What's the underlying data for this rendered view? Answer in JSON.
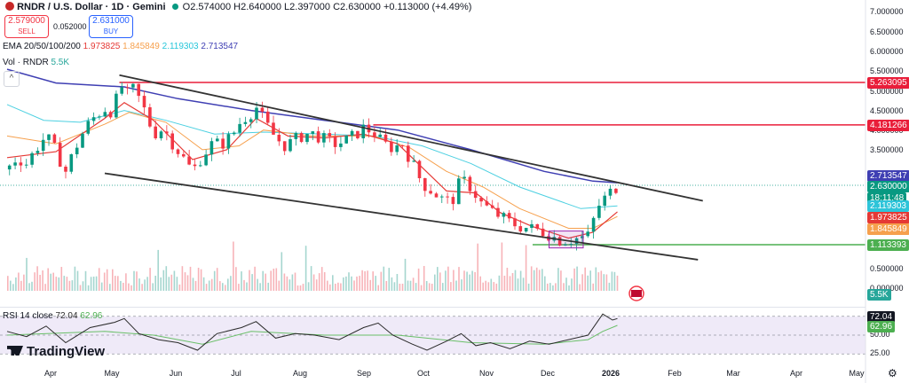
{
  "header": {
    "symbol": "RNDR / U.S. Dollar · 1D · Gemini",
    "ohlc": "O2.574000  H2.640000  L2.397000  C2.630000  +0.113000 (+4.49%)"
  },
  "trade": {
    "sell_price": "2.579000",
    "sell_label": "SELL",
    "spread": "0.052000",
    "buy_price": "2.631000",
    "buy_label": "BUY"
  },
  "indicators": {
    "ema_label": "EMA 20/50/100/200",
    "ema_values": [
      "1.973825",
      "1.845849",
      "2.119303",
      "2.713547"
    ],
    "vol_label": "Vol · RNDR",
    "vol_value": "5.5K",
    "rsi_label": "RSI 14 close",
    "rsi_value": "72.04",
    "rsi_ma": "62.96"
  },
  "logo": {
    "text": "TradingView"
  },
  "colors": {
    "ema20": "#e53935",
    "ema50": "#f6a04d",
    "ema100": "#4dd0e1",
    "ema200": "#3f3fb3",
    "up": "#089981",
    "down": "#f23645",
    "resistance": "#e91e3a",
    "support": "#4caf50",
    "trend": "#333333",
    "rsi": "#2a2a2a",
    "rsi_ma": "#6abf69"
  },
  "chart_data": {
    "type": "candlestick",
    "x_ticks": [
      "Apr",
      "May",
      "Jun",
      "Jul",
      "Aug",
      "Sep",
      "Oct",
      "Nov",
      "Dec",
      "2026",
      "Feb",
      "Mar",
      "Apr",
      "May"
    ],
    "price_ticks": [
      "7.000000",
      "6.500000",
      "6.000000",
      "5.500000",
      "5.000000",
      "4.500000",
      "4.000000",
      "3.500000",
      "1.000000",
      "0.500000",
      "0.000000"
    ],
    "rsi_ticks": [
      "75.00",
      "50.00",
      "25.00"
    ],
    "price_tags": [
      {
        "value": "5.263095",
        "kind": "resistance"
      },
      {
        "value": "4.181266",
        "kind": "resistance"
      },
      {
        "value": "2.713547",
        "kind": "ema200"
      },
      {
        "value": "2.630000",
        "kind": "last",
        "sub": "18:11:48"
      },
      {
        "value": "2.119303",
        "kind": "ema100"
      },
      {
        "value": "1.973825",
        "kind": "ema20"
      },
      {
        "value": "1.845849",
        "kind": "ema50"
      },
      {
        "value": "1.113393",
        "kind": "support"
      }
    ],
    "horizontal_levels": [
      5.263095,
      4.181266,
      1.113393
    ],
    "close_series": [
      [
        0,
        3.05
      ],
      [
        4,
        3.35
      ],
      [
        8,
        3.2
      ],
      [
        12,
        3.6
      ],
      [
        16,
        3.9
      ],
      [
        20,
        3.5
      ],
      [
        24,
        3.0
      ],
      [
        28,
        3.6
      ],
      [
        32,
        4.1
      ],
      [
        36,
        4.4
      ],
      [
        40,
        4.6
      ],
      [
        44,
        4.5
      ],
      [
        46,
        5.4
      ],
      [
        48,
        4.9
      ],
      [
        52,
        5.1
      ],
      [
        56,
        4.6
      ],
      [
        60,
        3.95
      ],
      [
        64,
        4.1
      ],
      [
        68,
        3.7
      ],
      [
        72,
        3.35
      ],
      [
        76,
        3.0
      ],
      [
        80,
        3.4
      ],
      [
        84,
        3.7
      ],
      [
        88,
        3.7
      ],
      [
        92,
        3.9
      ],
      [
        96,
        4.3
      ],
      [
        100,
        4.5
      ],
      [
        102,
        4.65
      ],
      [
        106,
        4.2
      ],
      [
        110,
        3.85
      ],
      [
        114,
        3.65
      ],
      [
        118,
        3.8
      ],
      [
        122,
        3.95
      ],
      [
        126,
        3.95
      ],
      [
        130,
        3.8
      ],
      [
        134,
        3.7
      ],
      [
        138,
        3.75
      ],
      [
        142,
        3.9
      ],
      [
        146,
        4.1
      ],
      [
        150,
        4.0
      ],
      [
        154,
        3.7
      ],
      [
        158,
        3.6
      ],
      [
        162,
        3.7
      ],
      [
        166,
        3.2
      ],
      [
        170,
        2.7
      ],
      [
        174,
        2.5
      ],
      [
        178,
        2.3
      ],
      [
        182,
        2.2
      ],
      [
        186,
        2.8
      ],
      [
        190,
        2.6
      ],
      [
        194,
        2.2
      ],
      [
        198,
        2.0
      ],
      [
        202,
        1.85
      ],
      [
        206,
        1.7
      ],
      [
        210,
        1.6
      ],
      [
        214,
        1.55
      ],
      [
        218,
        1.5
      ],
      [
        222,
        1.4
      ],
      [
        226,
        1.25
      ],
      [
        230,
        1.25
      ],
      [
        234,
        1.3
      ],
      [
        238,
        1.35
      ],
      [
        242,
        2.1
      ],
      [
        246,
        2.4
      ],
      [
        250,
        2.63
      ]
    ],
    "ema20": [
      [
        0,
        3.35
      ],
      [
        20,
        3.5
      ],
      [
        40,
        4.35
      ],
      [
        48,
        4.75
      ],
      [
        60,
        4.3
      ],
      [
        76,
        3.3
      ],
      [
        90,
        3.55
      ],
      [
        102,
        4.35
      ],
      [
        115,
        3.9
      ],
      [
        130,
        3.85
      ],
      [
        146,
        3.95
      ],
      [
        160,
        3.7
      ],
      [
        170,
        3.1
      ],
      [
        180,
        2.5
      ],
      [
        192,
        2.45
      ],
      [
        202,
        1.95
      ],
      [
        215,
        1.6
      ],
      [
        230,
        1.3
      ],
      [
        240,
        1.45
      ],
      [
        250,
        1.97
      ]
    ],
    "ema50": [
      [
        0,
        3.9
      ],
      [
        20,
        3.7
      ],
      [
        40,
        4.2
      ],
      [
        50,
        4.5
      ],
      [
        65,
        4.25
      ],
      [
        80,
        3.55
      ],
      [
        95,
        3.65
      ],
      [
        105,
        4.05
      ],
      [
        125,
        3.9
      ],
      [
        150,
        3.9
      ],
      [
        165,
        3.6
      ],
      [
        180,
        3.0
      ],
      [
        195,
        2.6
      ],
      [
        210,
        2.05
      ],
      [
        230,
        1.55
      ],
      [
        240,
        1.55
      ],
      [
        250,
        1.85
      ]
    ],
    "ema100": [
      [
        0,
        4.7
      ],
      [
        15,
        4.3
      ],
      [
        30,
        4.25
      ],
      [
        48,
        4.55
      ],
      [
        65,
        4.3
      ],
      [
        85,
        3.95
      ],
      [
        105,
        4.0
      ],
      [
        130,
        3.95
      ],
      [
        150,
        3.9
      ],
      [
        170,
        3.65
      ],
      [
        190,
        3.2
      ],
      [
        210,
        2.6
      ],
      [
        235,
        2.05
      ],
      [
        250,
        2.12
      ]
    ],
    "ema200": [
      [
        0,
        5.6
      ],
      [
        20,
        5.25
      ],
      [
        48,
        5.15
      ],
      [
        70,
        4.85
      ],
      [
        100,
        4.55
      ],
      [
        130,
        4.3
      ],
      [
        160,
        4.05
      ],
      [
        190,
        3.55
      ],
      [
        220,
        3.0
      ],
      [
        240,
        2.75
      ],
      [
        250,
        2.71
      ]
    ],
    "trendlines": [
      {
        "from": [
          46,
          5.45
        ],
        "to": [
          285,
          2.25
        ]
      },
      {
        "from": [
          40,
          2.95
        ],
        "to": [
          283,
          0.75
        ]
      }
    ],
    "rsi": [
      [
        0,
        55
      ],
      [
        8,
        48
      ],
      [
        16,
        62
      ],
      [
        24,
        40
      ],
      [
        34,
        60
      ],
      [
        44,
        67
      ],
      [
        48,
        72
      ],
      [
        54,
        52
      ],
      [
        62,
        44
      ],
      [
        70,
        40
      ],
      [
        78,
        30
      ],
      [
        86,
        52
      ],
      [
        96,
        60
      ],
      [
        102,
        68
      ],
      [
        110,
        46
      ],
      [
        118,
        52
      ],
      [
        126,
        50
      ],
      [
        136,
        44
      ],
      [
        146,
        60
      ],
      [
        152,
        66
      ],
      [
        158,
        50
      ],
      [
        166,
        38
      ],
      [
        172,
        30
      ],
      [
        180,
        42
      ],
      [
        186,
        52
      ],
      [
        192,
        36
      ],
      [
        198,
        40
      ],
      [
        206,
        32
      ],
      [
        214,
        42
      ],
      [
        222,
        38
      ],
      [
        230,
        44
      ],
      [
        238,
        50
      ],
      [
        244,
        78
      ],
      [
        248,
        70
      ],
      [
        250,
        72.04
      ]
    ],
    "rsi_ma": [
      [
        0,
        50
      ],
      [
        40,
        55
      ],
      [
        60,
        50
      ],
      [
        80,
        38
      ],
      [
        100,
        55
      ],
      [
        130,
        50
      ],
      [
        160,
        50
      ],
      [
        190,
        40
      ],
      [
        220,
        38
      ],
      [
        238,
        44
      ],
      [
        244,
        55
      ],
      [
        250,
        62.96
      ]
    ],
    "highlight_box": {
      "from": [
        222,
        1.05
      ],
      "to": [
        236,
        1.48
      ]
    }
  }
}
